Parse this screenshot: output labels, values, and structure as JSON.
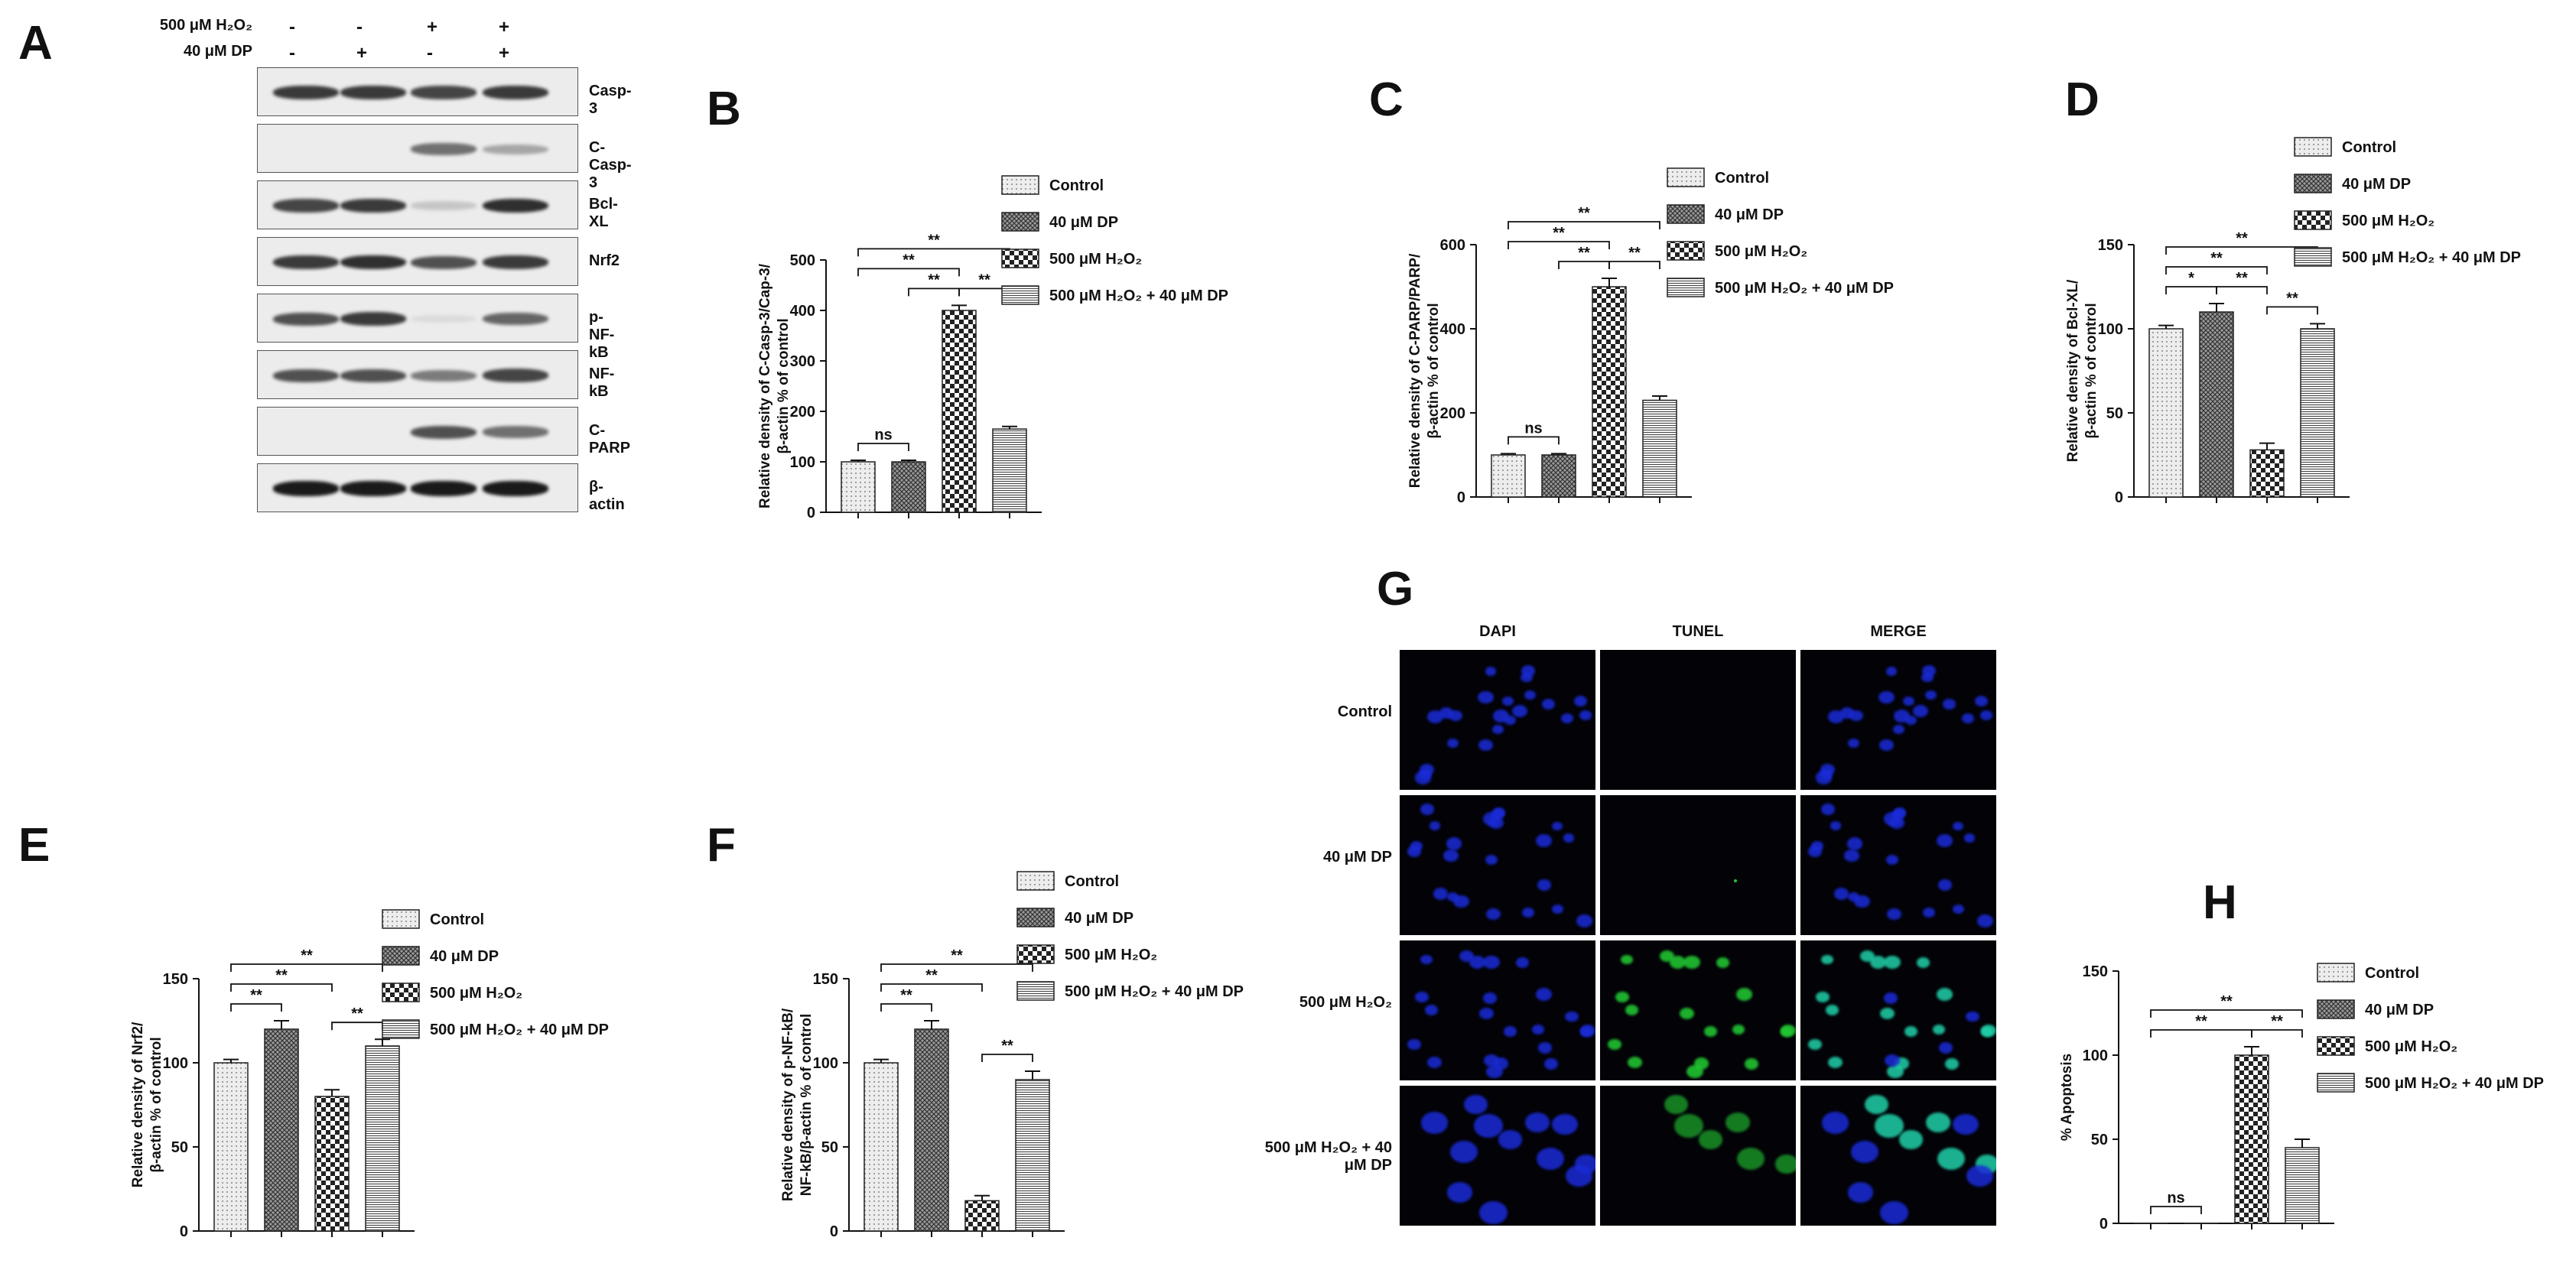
{
  "panels": {
    "A": "A",
    "B": "B",
    "C": "C",
    "D": "D",
    "E": "E",
    "F": "F",
    "G": "G",
    "H": "H"
  },
  "western_blot": {
    "treatments": [
      {
        "label": "500 μM H₂O₂",
        "signs": [
          "-",
          "-",
          "+",
          "+"
        ]
      },
      {
        "label": "40 μM DP",
        "signs": [
          "-",
          "+",
          "-",
          "+"
        ]
      }
    ],
    "proteins": [
      {
        "name": "Casp-3"
      },
      {
        "name": "C-Casp-3"
      },
      {
        "name": "Bcl-XL"
      },
      {
        "name": "Nrf2"
      },
      {
        "name": "p-NF-kB"
      },
      {
        "name": "NF-kB"
      },
      {
        "name": "C-PARP"
      },
      {
        "name": "β-actin"
      }
    ],
    "band_intensity": [
      [
        0.8,
        0.8,
        0.75,
        0.8
      ],
      [
        0.02,
        0.02,
        0.55,
        0.3
      ],
      [
        0.75,
        0.8,
        0.15,
        0.85
      ],
      [
        0.8,
        0.85,
        0.7,
        0.8
      ],
      [
        0.7,
        0.8,
        0.05,
        0.6
      ],
      [
        0.7,
        0.7,
        0.5,
        0.75
      ],
      [
        0.02,
        0.02,
        0.7,
        0.55
      ],
      [
        0.95,
        0.95,
        0.95,
        0.95
      ]
    ]
  },
  "legend": [
    "Control",
    "40 μM DP",
    "500 μM H₂O₂",
    "500 μM H₂O₂ + 40 μM DP"
  ],
  "chart_data": [
    {
      "id": "B",
      "type": "bar",
      "categories": [
        "Control",
        "40 μM DP",
        "500 μM H₂O₂",
        "500 μM H₂O₂ + 40 μM DP"
      ],
      "values": [
        100,
        100,
        400,
        165
      ],
      "errors": [
        3,
        3,
        10,
        5
      ],
      "ylabel": "Relative density of C-Casp-3/Cap-3/ β-actin % of control",
      "ylim": [
        0,
        500
      ],
      "yticks": [
        0,
        100,
        200,
        300,
        400,
        500
      ],
      "significance": [
        {
          "from": 0,
          "to": 1,
          "label": "ns"
        },
        {
          "from": 1,
          "to": 2,
          "label": "**"
        },
        {
          "from": 0,
          "to": 2,
          "label": "**"
        },
        {
          "from": 2,
          "to": 3,
          "label": "**"
        },
        {
          "from": 0,
          "to": 3,
          "label": "**"
        }
      ]
    },
    {
      "id": "C",
      "type": "bar",
      "categories": [
        "Control",
        "40 μM DP",
        "500 μM H₂O₂",
        "500 μM H₂O₂ + 40 μM DP"
      ],
      "values": [
        100,
        100,
        500,
        230
      ],
      "errors": [
        3,
        3,
        20,
        10
      ],
      "ylabel": "Relative density of C-PARP/PARP/ β-actin % of control",
      "ylim": [
        0,
        600
      ],
      "yticks": [
        0,
        200,
        400,
        600
      ],
      "significance": [
        {
          "from": 0,
          "to": 1,
          "label": "ns"
        },
        {
          "from": 2,
          "to": 3,
          "label": "**"
        },
        {
          "from": 1,
          "to": 2,
          "label": "**"
        },
        {
          "from": 0,
          "to": 2,
          "label": "**"
        },
        {
          "from": 0,
          "to": 3,
          "label": "**"
        }
      ]
    },
    {
      "id": "D",
      "type": "bar",
      "categories": [
        "Control",
        "40 μM DP",
        "500 μM H₂O₂",
        "500 μM H₂O₂ + 40 μM DP"
      ],
      "values": [
        100,
        110,
        28,
        100
      ],
      "errors": [
        2,
        5,
        4,
        3
      ],
      "ylabel": "Relative density of Bcl-XL/ β-actin % of control",
      "ylim": [
        0,
        150
      ],
      "yticks": [
        0,
        50,
        100,
        150
      ],
      "significance": [
        {
          "from": 0,
          "to": 1,
          "label": "*"
        },
        {
          "from": 2,
          "to": 3,
          "label": "**"
        },
        {
          "from": 1,
          "to": 2,
          "label": "**"
        },
        {
          "from": 0,
          "to": 2,
          "label": "**"
        },
        {
          "from": 0,
          "to": 3,
          "label": "**"
        }
      ]
    },
    {
      "id": "E",
      "type": "bar",
      "categories": [
        "Control",
        "40 μM DP",
        "500 μM H₂O₂",
        "500 μM H₂O₂ + 40 μM DP"
      ],
      "values": [
        100,
        120,
        80,
        110
      ],
      "errors": [
        2,
        5,
        4,
        4
      ],
      "ylabel": "Relative density of Nrf2/ β-actin % of control",
      "ylim": [
        0,
        150
      ],
      "yticks": [
        0,
        50,
        100,
        150
      ],
      "significance": [
        {
          "from": 0,
          "to": 1,
          "label": "**"
        },
        {
          "from": 2,
          "to": 3,
          "label": "**"
        },
        {
          "from": 0,
          "to": 2,
          "label": "**"
        },
        {
          "from": 0,
          "to": 3,
          "label": "**"
        }
      ]
    },
    {
      "id": "F",
      "type": "bar",
      "categories": [
        "Control",
        "40 μM DP",
        "500 μM H₂O₂",
        "500 μM H₂O₂ + 40 μM DP"
      ],
      "values": [
        100,
        120,
        18,
        90
      ],
      "errors": [
        2,
        5,
        3,
        5
      ],
      "ylabel": "Relative density of p-NF-kB/ NF-kB/β-actin % of control",
      "ylim": [
        0,
        150
      ],
      "yticks": [
        0,
        50,
        100,
        150
      ],
      "significance": [
        {
          "from": 0,
          "to": 1,
          "label": "**"
        },
        {
          "from": 2,
          "to": 3,
          "label": "**"
        },
        {
          "from": 0,
          "to": 2,
          "label": "**"
        },
        {
          "from": 0,
          "to": 3,
          "label": "**"
        }
      ]
    },
    {
      "id": "H",
      "type": "bar",
      "categories": [
        "Control",
        "40 μM DP",
        "500 μM H₂O₂",
        "500 μM H₂O₂ + 40 μM DP"
      ],
      "values": [
        0,
        0,
        100,
        45
      ],
      "errors": [
        0,
        0,
        5,
        5
      ],
      "ylabel": "% Apoptosis",
      "ylim": [
        0,
        150
      ],
      "yticks": [
        0,
        50,
        100,
        150
      ],
      "significance": [
        {
          "from": 0,
          "to": 1,
          "label": "ns"
        },
        {
          "from": 2,
          "to": 3,
          "label": "**"
        },
        {
          "from": 0,
          "to": 2,
          "label": "**"
        },
        {
          "from": 0,
          "to": 3,
          "label": "**"
        }
      ]
    }
  ],
  "microscopy": {
    "columns": [
      "DAPI",
      "TUNEL",
      "MERGE"
    ],
    "rows": [
      {
        "label": "Control"
      },
      {
        "label": "40 μM DP"
      },
      {
        "label": "500 μM H₂O₂"
      },
      {
        "label": "500 μM H₂O₂ + 40 μM DP"
      }
    ],
    "tunel_signal": [
      0,
      0.02,
      0.8,
      0.4
    ]
  },
  "colors": {
    "bar_edge": "#222222",
    "bar_fill": "#ffffff",
    "pattern_dark": "#333333",
    "dapi": "#1a2bd8",
    "tunel": "#22c832",
    "merge": "#20d0a8",
    "background": "#ffffff"
  }
}
